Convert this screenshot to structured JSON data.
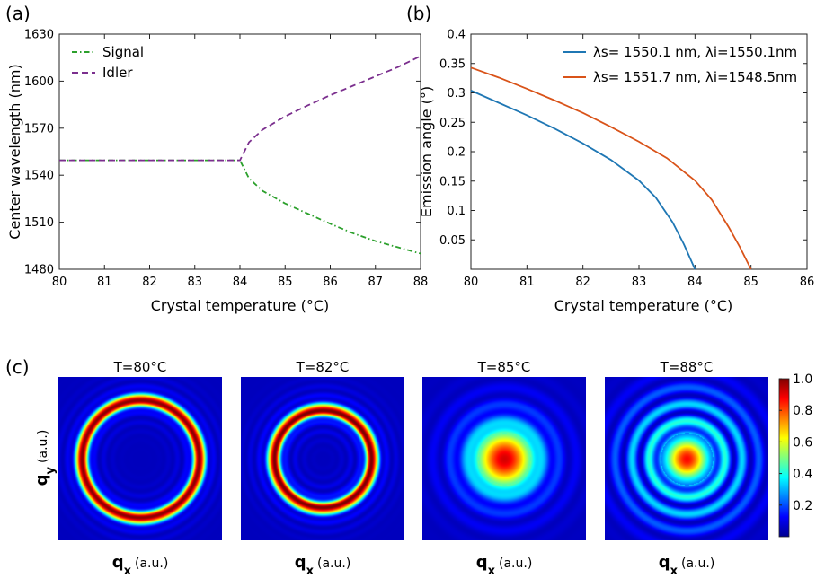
{
  "chart_data": [
    {
      "panel": "(a)",
      "type": "line",
      "xlabel": "Crystal temperature (°C)",
      "ylabel": "Center wavelength (nm)",
      "xlim": [
        80,
        88
      ],
      "ylim": [
        1480,
        1630
      ],
      "xticks": [
        80,
        81,
        82,
        83,
        84,
        85,
        86,
        87,
        88
      ],
      "yticks": [
        1480,
        1510,
        1540,
        1570,
        1600,
        1630
      ],
      "legend": "top-left",
      "series": [
        {
          "name": "Signal",
          "color": "#2ca02c",
          "style": "dash-dot",
          "x": [
            80,
            81,
            82,
            83,
            84,
            84.2,
            84.5,
            85,
            85.5,
            86,
            86.5,
            87,
            87.5,
            88
          ],
          "y": [
            1549.5,
            1549.5,
            1549.5,
            1549.5,
            1549.5,
            1538,
            1530,
            1522,
            1515.5,
            1509,
            1503,
            1498,
            1494,
            1490
          ]
        },
        {
          "name": "Idler",
          "color": "#7b2f8e",
          "style": "dash",
          "x": [
            80,
            81,
            82,
            83,
            84,
            84.2,
            84.5,
            85,
            85.5,
            86,
            86.5,
            87,
            87.5,
            88
          ],
          "y": [
            1549.5,
            1549.5,
            1549.5,
            1549.5,
            1549.5,
            1561,
            1569,
            1577.5,
            1584.5,
            1591,
            1597,
            1603,
            1609,
            1616
          ]
        }
      ]
    },
    {
      "panel": "(b)",
      "type": "line",
      "xlabel": "Crystal temperature (°C)",
      "ylabel": "Emission angle (°)",
      "xlim": [
        80,
        86
      ],
      "ylim": [
        0,
        0.4
      ],
      "xticks": [
        80,
        81,
        82,
        83,
        84,
        85,
        86
      ],
      "yticks": [
        0.05,
        0.1,
        0.15,
        0.2,
        0.25,
        0.3,
        0.35,
        0.4
      ],
      "legend": "top-right",
      "series": [
        {
          "name": "λs= 1550.1 nm, λi=1550.1nm",
          "color": "#1f77b4",
          "x": [
            80,
            80.5,
            81,
            81.5,
            82,
            82.5,
            83,
            83.3,
            83.6,
            83.8,
            84
          ],
          "y": [
            0.304,
            0.283,
            0.262,
            0.239,
            0.214,
            0.186,
            0.151,
            0.122,
            0.08,
            0.043,
            0
          ]
        },
        {
          "name": "λs= 1551.7 nm, λi=1548.5nm",
          "color": "#d95319",
          "x": [
            80,
            80.5,
            81,
            81.5,
            82,
            82.5,
            83,
            83.5,
            84,
            84.3,
            84.6,
            84.8,
            85
          ],
          "y": [
            0.343,
            0.326,
            0.307,
            0.287,
            0.266,
            0.242,
            0.217,
            0.189,
            0.151,
            0.118,
            0.072,
            0.038,
            0
          ]
        }
      ]
    },
    {
      "panel": "(c)",
      "type": "heatmap",
      "xlabel_bold": "q",
      "xlabel_sub": "x",
      "xlabel_unit": "(a.u.)",
      "ylabel_bold": "q",
      "ylabel_sub": "y",
      "ylabel_unit": "(a.u.)",
      "colorscale": "jet",
      "colorbar_ticks": [
        "0.2",
        "0.4",
        "0.6",
        "0.8",
        "1.0"
      ],
      "maps": [
        {
          "title": "T=80°C",
          "ring_radius": 0.72,
          "ring_width": 0.07,
          "center_intensity": 0.0,
          "side_ring_intensity": 0.08
        },
        {
          "title": "T=82°C",
          "ring_radius": 0.6,
          "ring_width": 0.07,
          "center_intensity": 0.0,
          "side_ring_intensity": 0.1
        },
        {
          "title": "T=85°C",
          "ring_radius": 0.0,
          "ring_width": 0.36,
          "center_intensity": 0.93,
          "side_ring_intensity": 0.12
        },
        {
          "title": "T=88°C",
          "ring_radius": 0.0,
          "ring_width": 0.26,
          "center_intensity": 0.88,
          "side_ring_intensity": 0.35
        }
      ]
    }
  ],
  "panel_labels": {
    "a": "(a)",
    "b": "(b)",
    "c": "(c)"
  }
}
